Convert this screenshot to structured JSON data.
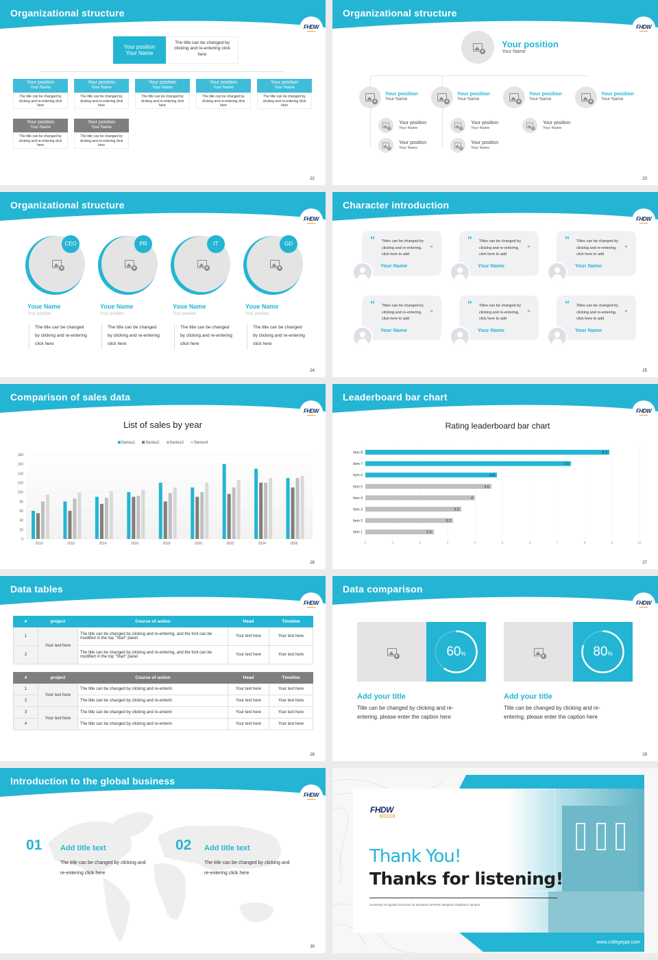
{
  "theme": {
    "accent": "#23b5d3",
    "gray_dark": "#7f7f7f",
    "gray_mid": "#bfbfbf",
    "gray_light": "#d9d9d9",
    "navy": "#1a2a6c",
    "gold": "#e3a42c"
  },
  "logo": {
    "text": "FHDW"
  },
  "slides": {
    "s22": {
      "title": "Organizational structure",
      "page": "22",
      "top": {
        "position": "Your position",
        "name": "Your Name",
        "desc": "The title can be changed by clicking and re-entering click here"
      },
      "row1": [
        {
          "position": "Your position",
          "name": "Your Name",
          "desc": "The title can be changed by clicking and re-entering click here"
        },
        {
          "position": "Your position",
          "name": "Your Name",
          "desc": "The title can be changed by clicking and re-entering click here"
        },
        {
          "position": "Your position",
          "name": "Your Name",
          "desc": "The title can be changed by clicking and re-entering click here"
        },
        {
          "position": "Your position",
          "name": "Your Name",
          "desc": "The title can be changed by clicking and re-entering click here"
        },
        {
          "position": "Your position",
          "name": "Your Name",
          "desc": "The title can be changed by clicking and re-entering click here"
        }
      ],
      "row2": [
        {
          "position": "Your position",
          "name": "Your Name",
          "desc": "The title can be changed by clicking and re-entering click here"
        },
        {
          "position": "Your position",
          "name": "Your Name",
          "desc": "The title can be changed by clicking and re-entering click here"
        }
      ]
    },
    "s23": {
      "title": "Organizational structure",
      "page": "23",
      "top": {
        "position": "Your position",
        "name": "Your Name"
      },
      "level2": [
        {
          "position": "Your position",
          "name": "Your Name"
        },
        {
          "position": "Your position",
          "name": "Your Name"
        },
        {
          "position": "Your position",
          "name": "Your Name"
        },
        {
          "position": "Your position",
          "name": "Your Name"
        }
      ],
      "level3": [
        {
          "position": "Your position",
          "name": "Your Name"
        },
        {
          "position": "Your position",
          "name": "Your Name"
        },
        {
          "position": "Your position",
          "name": "Your Name"
        },
        {
          "position": "Your position",
          "name": "Your Name"
        },
        {
          "position": "Your position",
          "name": "Your Name"
        }
      ]
    },
    "s24": {
      "title": "Organizational structure",
      "page": "24",
      "members": [
        {
          "badge": "CEO",
          "name": "Youe Name",
          "position": "Your position",
          "desc": "The title can be changed by clicking and re-entering click here"
        },
        {
          "badge": "PR",
          "name": "Youe Name",
          "position": "Your position",
          "desc": "The title can be changed by clicking and re-entering click here"
        },
        {
          "badge": "IT",
          "name": "Youe Name",
          "position": "Your position",
          "desc": "The title can be changed by clicking and re-entering click here"
        },
        {
          "badge": "GD",
          "name": "Youe Name",
          "position": "Your position",
          "desc": "The title can be changed by clicking and re-entering click here"
        }
      ]
    },
    "s25": {
      "title": "Character introduction",
      "page": "25",
      "open_quote": "“",
      "close_quote": "”",
      "cards": [
        {
          "text": "Titles can be changed by clicking and re-entering, click here to add",
          "name": "Your Name"
        },
        {
          "text": "Titles can be changed by clicking and re-entering, click here to add",
          "name": "Your Name"
        },
        {
          "text": "Titles can be changed by clicking and re-entering, click here to add",
          "name": "Your Name"
        },
        {
          "text": "Titles can be changed by clicking and re-entering, click here to add",
          "name": "Your Name"
        },
        {
          "text": "Titles can be changed by clicking and re-entering, click here to add",
          "name": "Your Name"
        },
        {
          "text": "Titles can be changed by clicking and re-entering, click here to add",
          "name": "Your Name"
        }
      ]
    },
    "s26": {
      "title": "Comparison of sales data",
      "page": "26"
    },
    "s27": {
      "title": "Leaderboard bar chart",
      "page": "27"
    },
    "s28": {
      "title": "Data tables",
      "page": "28",
      "headers": [
        "#",
        "project",
        "Course of action",
        "Head",
        "Timeline"
      ],
      "table1": {
        "project": "Your text here",
        "rows": [
          {
            "num": "1",
            "action": "The title can be changed by clicking and re-entering, and the font can be modified in the top \"Start\" panel",
            "head": "Your text here",
            "timeline": "Your text here"
          },
          {
            "num": "2",
            "action": "The title can be changed by clicking and re-entering, and the font can be modified in the top \"Start\" panel",
            "head": "Your text here",
            "timeline": "Your text here"
          }
        ]
      },
      "table2": {
        "projects": [
          "Your text here",
          "Your text here"
        ],
        "rows": [
          {
            "num": "1",
            "action": "The title can be changed by clicking and re-enterin",
            "head": "Your text here",
            "timeline": "Your text here"
          },
          {
            "num": "2",
            "action": "The title can be changed by clicking and re-enterin",
            "head": "Your text here",
            "timeline": "Your text here"
          },
          {
            "num": "3",
            "action": "The title can be changed by clicking and re-enterin",
            "head": "Your text here",
            "timeline": "Your text here"
          },
          {
            "num": "4",
            "action": "The title can be changed by clicking and re-enterin",
            "head": "Your text here",
            "timeline": "Your text here"
          }
        ]
      }
    },
    "s29": {
      "title": "Data comparison",
      "page": "29",
      "items": [
        {
          "value": "60",
          "unit": "%",
          "percent": 60,
          "title": "Add your title",
          "desc": "Title can be changed by clicking and re-entering, please enter the caption here"
        },
        {
          "value": "80",
          "unit": "%",
          "percent": 80,
          "title": "Add your title",
          "desc": "Title can be changed by clicking and re-entering, please enter the caption here"
        }
      ]
    },
    "s30": {
      "title": "Introduction to the global business",
      "page": "30",
      "items": [
        {
          "num": "01",
          "title": "Add title text",
          "desc": "The title can be changed by clicking and re-entering click here"
        },
        {
          "num": "02",
          "title": "Add title text",
          "desc": "The title can be changed by clicking and re-entering click here"
        }
      ]
    },
    "s31": {
      "logo": "FHDW",
      "thank_you": "Thank You!",
      "thanks": "Thanks for listening!",
      "subtitle": "University of Applied Sciences for Business AHFDW, Bergisch Gladbach campus",
      "url": "www.collegeppt.com"
    }
  },
  "chart_data": [
    {
      "type": "bar",
      "title": "List of sales by year",
      "categories": [
        "2010",
        "2012",
        "2014",
        "2016",
        "2018",
        "2020",
        "2022",
        "2024",
        "2026"
      ],
      "series": [
        {
          "name": "Series1",
          "color": "#23b5d3",
          "values": [
            60,
            80,
            90,
            100,
            120,
            110,
            160,
            150,
            130
          ]
        },
        {
          "name": "Series2",
          "color": "#7f7f7f",
          "values": [
            55,
            60,
            75,
            90,
            80,
            90,
            96,
            120,
            110
          ]
        },
        {
          "name": "Series3",
          "color": "#bfbfbf",
          "values": [
            80,
            86,
            88,
            92,
            98,
            100,
            110,
            120,
            130
          ]
        },
        {
          "name": "Series4",
          "color": "#d9d9d9",
          "values": [
            95,
            99,
            102,
            105,
            110,
            120,
            126,
            130,
            135
          ]
        }
      ],
      "yticks": [
        0,
        20,
        40,
        60,
        80,
        100,
        120,
        140,
        160,
        180
      ],
      "ylim": [
        0,
        180
      ],
      "legend_position": "top",
      "grid": true,
      "xlabel": "",
      "ylabel": ""
    },
    {
      "type": "bar",
      "orientation": "horizontal",
      "title": "Rating leaderboard bar chart",
      "categories": [
        "Item 8",
        "Item 7",
        "Item 6",
        "Item 5",
        "Item 4",
        "Item 3",
        "Item 2",
        "Item 1"
      ],
      "values": [
        8.9,
        7.5,
        4.8,
        4.6,
        4,
        3.5,
        3.2,
        2.5
      ],
      "highlight": [
        true,
        true,
        true,
        false,
        false,
        false,
        false,
        false
      ],
      "xticks": [
        0,
        1,
        2,
        3,
        4,
        5,
        6,
        7,
        8,
        9,
        10
      ],
      "xlim": [
        0,
        10
      ],
      "grid": true,
      "xlabel": "",
      "ylabel": ""
    }
  ]
}
